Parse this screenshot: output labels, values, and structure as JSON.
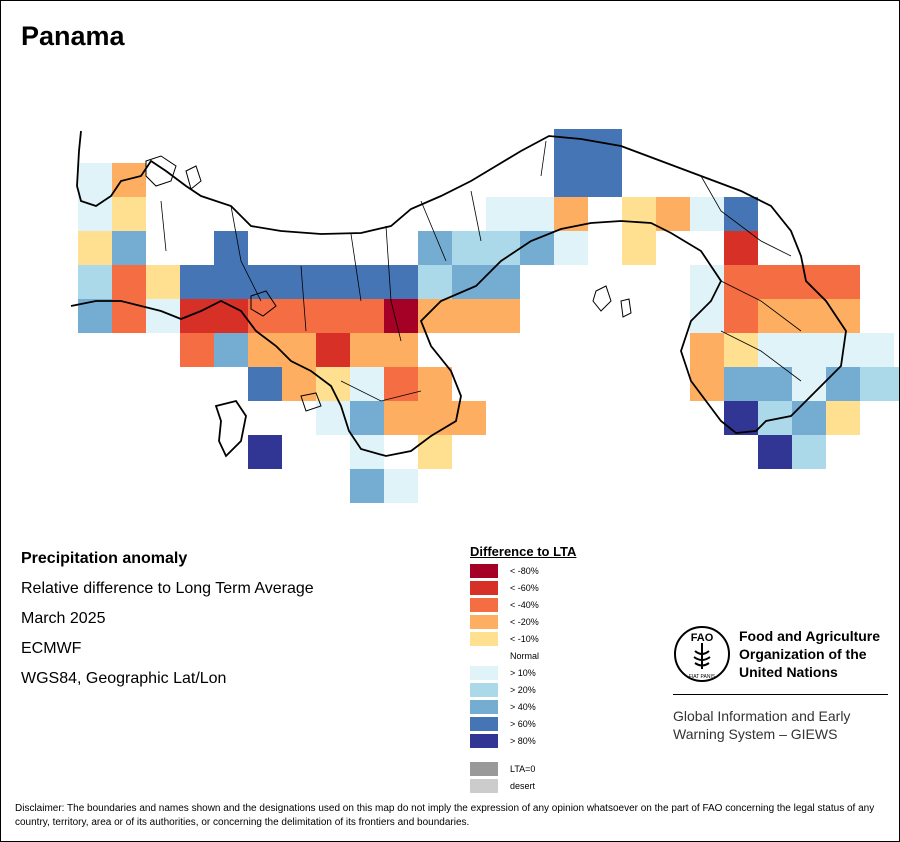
{
  "title": "Panama",
  "info": {
    "title": "Precipitation anomaly",
    "subtitle": "Relative difference to Long Term Average",
    "date": "March 2025",
    "source": "ECMWF",
    "projection": "WGS84, Geographic Lat/Lon"
  },
  "legend": {
    "title": "Difference to LTA",
    "items": [
      {
        "label": "< -80%",
        "color": "#a50026"
      },
      {
        "label": "< -60%",
        "color": "#d73027"
      },
      {
        "label": "< -40%",
        "color": "#f46d43"
      },
      {
        "label": "< -20%",
        "color": "#fdae61"
      },
      {
        "label": "< -10%",
        "color": "#fee090"
      },
      {
        "label": "Normal",
        "color": "#ffffff"
      },
      {
        "label": "> 10%",
        "color": "#e0f3f8"
      },
      {
        "label": "> 20%",
        "color": "#abd9e9"
      },
      {
        "label": "> 40%",
        "color": "#74add1"
      },
      {
        "label": "> 60%",
        "color": "#4575b4"
      },
      {
        "label": "> 80%",
        "color": "#313695"
      }
    ],
    "extra": [
      {
        "label": "LTA=0",
        "color": "#999999"
      },
      {
        "label": "desert",
        "color": "#cccccc"
      }
    ]
  },
  "organization": {
    "name": "Food and Agriculture Organization of the United Nations",
    "logo_text": "FAO",
    "logo_motto": "FIAT PANIS",
    "program": "Global Information and Early Warning System – GIEWS"
  },
  "disclaimer": "Disclaimer: The boundaries and names shown and the designations used on this map do not imply the expression of any opinion whatsoever on the part of FAO concerning the legal status of any country, territory, area or of its authorities, or concerning the delimitation of its frontiers and boundaries.",
  "anomaly_grid_legend_index": [
    [
      null,
      null,
      null,
      null,
      null,
      null,
      null,
      null,
      null,
      null,
      null,
      null,
      null,
      null,
      null,
      null,
      null,
      null,
      null,
      null,
      null,
      null,
      null,
      null,
      null
    ],
    [
      null,
      null,
      null,
      null,
      null,
      null,
      null,
      null,
      null,
      null,
      null,
      null,
      null,
      null,
      9,
      9,
      null,
      null,
      null,
      null,
      null,
      null,
      null,
      null,
      null
    ],
    [
      6,
      3,
      null,
      null,
      null,
      null,
      null,
      null,
      null,
      null,
      null,
      null,
      null,
      null,
      9,
      9,
      null,
      null,
      null,
      null,
      null,
      null,
      null,
      null,
      null
    ],
    [
      6,
      4,
      null,
      null,
      null,
      null,
      null,
      null,
      null,
      null,
      null,
      null,
      6,
      6,
      3,
      5,
      4,
      3,
      6,
      9,
      null,
      null,
      null,
      null,
      null
    ],
    [
      4,
      8,
      null,
      null,
      9,
      null,
      null,
      null,
      null,
      null,
      8,
      7,
      7,
      8,
      6,
      null,
      4,
      null,
      null,
      1,
      null,
      null,
      null,
      null,
      null
    ],
    [
      7,
      2,
      4,
      9,
      9,
      9,
      9,
      9,
      9,
      9,
      7,
      8,
      8,
      null,
      null,
      null,
      null,
      null,
      6,
      2,
      2,
      2,
      2,
      null,
      null
    ],
    [
      8,
      2,
      6,
      1,
      1,
      2,
      2,
      2,
      2,
      0,
      3,
      3,
      3,
      null,
      null,
      null,
      null,
      null,
      6,
      2,
      3,
      3,
      3,
      null,
      null
    ],
    [
      null,
      null,
      null,
      2,
      8,
      3,
      3,
      1,
      3,
      3,
      null,
      null,
      null,
      null,
      null,
      null,
      null,
      null,
      3,
      4,
      6,
      6,
      6,
      6,
      null
    ],
    [
      null,
      null,
      null,
      null,
      null,
      9,
      3,
      4,
      6,
      2,
      3,
      null,
      null,
      null,
      null,
      null,
      null,
      null,
      3,
      8,
      8,
      6,
      8,
      7,
      7
    ],
    [
      null,
      null,
      null,
      null,
      null,
      null,
      null,
      6,
      8,
      3,
      3,
      3,
      null,
      null,
      null,
      null,
      null,
      null,
      null,
      10,
      7,
      8,
      4,
      null,
      null
    ],
    [
      null,
      null,
      null,
      null,
      null,
      10,
      null,
      null,
      6,
      5,
      4,
      null,
      null,
      null,
      null,
      null,
      null,
      null,
      null,
      null,
      10,
      7,
      null,
      null,
      null
    ],
    [
      null,
      null,
      null,
      null,
      null,
      null,
      null,
      null,
      8,
      6,
      null,
      null,
      null,
      null,
      null,
      null,
      null,
      null,
      null,
      null,
      null,
      null,
      null,
      null,
      null
    ]
  ]
}
